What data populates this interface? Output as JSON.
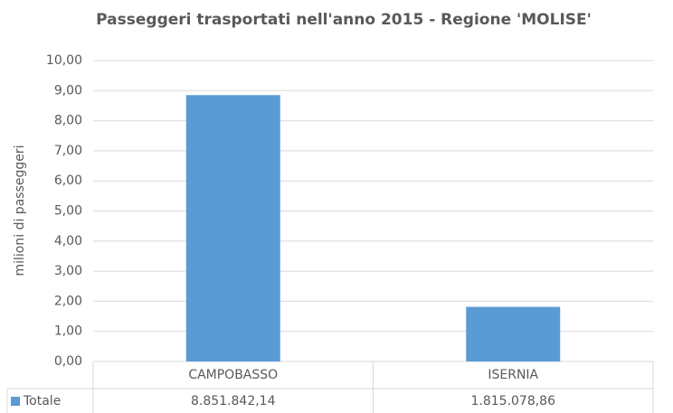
{
  "chart_data": {
    "type": "bar",
    "title": "Passeggeri trasportati nell'anno 2015 - Regione 'MOLISE'",
    "y_label": "milioni di passeggeri",
    "categories": [
      "CAMPOBASSO",
      "ISERNIA"
    ],
    "series": [
      {
        "name": "Totale",
        "color": "#5b9bd5",
        "values": [
          8.85184214,
          1.81507886
        ],
        "value_labels": [
          "8.851.842,14",
          "1.815.078,86"
        ]
      }
    ],
    "ylim": [
      0,
      10
    ],
    "yticks": [
      {
        "value": 0,
        "label": "0,00"
      },
      {
        "value": 1,
        "label": "1,00"
      },
      {
        "value": 2,
        "label": "2,00"
      },
      {
        "value": 3,
        "label": "3,00"
      },
      {
        "value": 4,
        "label": "4,00"
      },
      {
        "value": 5,
        "label": "5,00"
      },
      {
        "value": 6,
        "label": "6,00"
      },
      {
        "value": 7,
        "label": "7,00"
      },
      {
        "value": 8,
        "label": "8,00"
      },
      {
        "value": 9,
        "label": "9,00"
      },
      {
        "value": 10,
        "label": "10,00"
      }
    ],
    "grid": true
  }
}
